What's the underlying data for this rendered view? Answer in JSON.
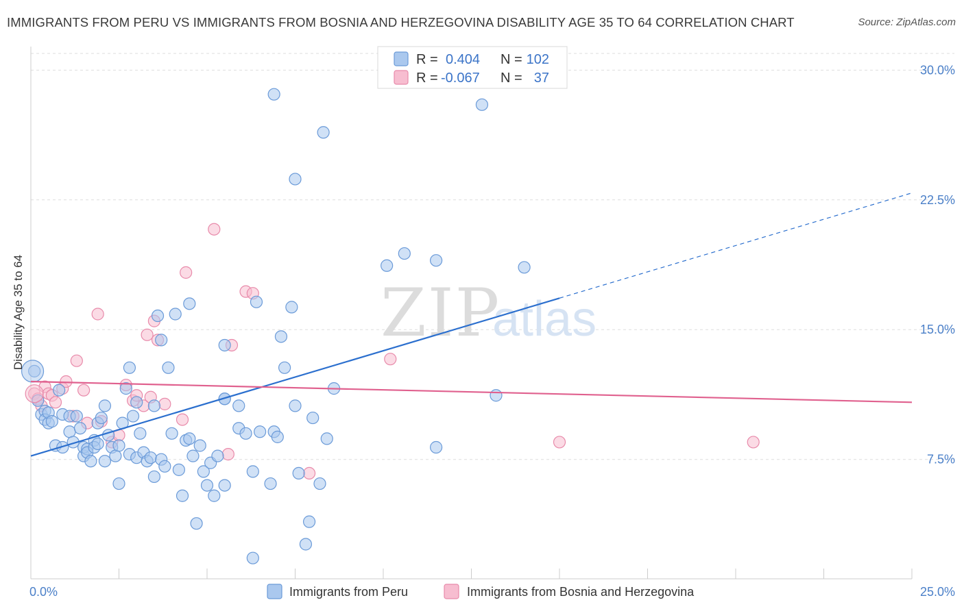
{
  "title": "IMMIGRANTS FROM PERU VS IMMIGRANTS FROM BOSNIA AND HERZEGOVINA DISABILITY AGE 35 TO 64 CORRELATION CHART",
  "source": "Source: ZipAtlas.com",
  "watermark": {
    "zip": "ZIP",
    "atlas": "atlas"
  },
  "colors": {
    "peru_fill": "#aac8ee",
    "peru_stroke": "#6a9ad8",
    "peru_line": "#2b6fce",
    "bosnia_fill": "#f7bdd0",
    "bosnia_stroke": "#e88aaa",
    "bosnia_line": "#e0608e",
    "tick_text": "#4a7fc8",
    "grid": "#dddddd"
  },
  "legend": {
    "rows": [
      {
        "r_label": "R =",
        "r_value": "0.404",
        "n_label": "N =",
        "n_value": "102"
      },
      {
        "r_label": "R =",
        "r_value": "-0.067",
        "n_label": "N =",
        "n_value": "37"
      }
    ]
  },
  "chart_data": {
    "type": "scatter",
    "xlabel": "",
    "ylabel": "Disability Age 35 to 64",
    "x_tick_labels": [
      "0.0%",
      "25.0%"
    ],
    "y_tick_labels": [
      "7.5%",
      "15.0%",
      "22.5%",
      "30.0%"
    ],
    "xlim": [
      0,
      25
    ],
    "ylim": [
      0.6,
      31.2
    ],
    "grid": true,
    "legend_placement": "top-center",
    "series": [
      {
        "name": "Immigrants from Peru",
        "points": [
          [
            0.1,
            12.6
          ],
          [
            0.2,
            10.9
          ],
          [
            0.3,
            10.1
          ],
          [
            0.4,
            10.3
          ],
          [
            0.4,
            9.8
          ],
          [
            0.5,
            9.6
          ],
          [
            0.5,
            10.2
          ],
          [
            0.6,
            9.7
          ],
          [
            0.7,
            8.3
          ],
          [
            0.8,
            11.5
          ],
          [
            0.9,
            10.1
          ],
          [
            0.9,
            8.2
          ],
          [
            1.1,
            10.0
          ],
          [
            1.1,
            9.1
          ],
          [
            1.2,
            8.5
          ],
          [
            1.3,
            10.0
          ],
          [
            1.4,
            9.3
          ],
          [
            1.5,
            7.7
          ],
          [
            1.5,
            8.2
          ],
          [
            1.6,
            8.1
          ],
          [
            1.6,
            7.9
          ],
          [
            1.7,
            7.4
          ],
          [
            1.8,
            8.6
          ],
          [
            1.8,
            8.2
          ],
          [
            1.9,
            9.6
          ],
          [
            1.9,
            8.4
          ],
          [
            2.0,
            9.9
          ],
          [
            2.1,
            10.6
          ],
          [
            2.1,
            7.4
          ],
          [
            2.2,
            8.9
          ],
          [
            2.3,
            8.2
          ],
          [
            2.4,
            7.7
          ],
          [
            2.5,
            8.3
          ],
          [
            2.5,
            6.1
          ],
          [
            2.6,
            9.6
          ],
          [
            2.7,
            11.6
          ],
          [
            2.8,
            7.8
          ],
          [
            2.8,
            12.8
          ],
          [
            2.9,
            10.0
          ],
          [
            3.0,
            10.8
          ],
          [
            3.0,
            7.6
          ],
          [
            3.1,
            9.0
          ],
          [
            3.2,
            7.9
          ],
          [
            3.3,
            7.4
          ],
          [
            3.4,
            7.6
          ],
          [
            3.5,
            10.6
          ],
          [
            3.5,
            6.5
          ],
          [
            3.6,
            15.8
          ],
          [
            3.7,
            14.4
          ],
          [
            3.7,
            7.5
          ],
          [
            3.8,
            7.1
          ],
          [
            3.9,
            12.8
          ],
          [
            4.0,
            9.0
          ],
          [
            4.1,
            15.9
          ],
          [
            4.2,
            6.9
          ],
          [
            4.3,
            5.4
          ],
          [
            4.4,
            8.6
          ],
          [
            4.5,
            16.5
          ],
          [
            4.5,
            8.7
          ],
          [
            4.6,
            7.7
          ],
          [
            4.7,
            3.8
          ],
          [
            4.8,
            8.3
          ],
          [
            4.9,
            6.8
          ],
          [
            5.0,
            6.0
          ],
          [
            5.1,
            7.3
          ],
          [
            5.2,
            5.4
          ],
          [
            5.3,
            7.7
          ],
          [
            5.5,
            11.0
          ],
          [
            5.5,
            14.1
          ],
          [
            5.5,
            6.0
          ],
          [
            5.9,
            10.6
          ],
          [
            5.9,
            9.3
          ],
          [
            5.5,
            11.0
          ],
          [
            6.1,
            9.0
          ],
          [
            6.3,
            6.8
          ],
          [
            6.4,
            16.6
          ],
          [
            6.3,
            1.8
          ],
          [
            6.5,
            9.1
          ],
          [
            6.8,
            6.1
          ],
          [
            6.9,
            28.6
          ],
          [
            6.9,
            9.1
          ],
          [
            7.0,
            8.8
          ],
          [
            7.1,
            14.6
          ],
          [
            7.2,
            12.8
          ],
          [
            7.4,
            16.3
          ],
          [
            7.5,
            23.7
          ],
          [
            7.5,
            10.6
          ],
          [
            7.6,
            6.7
          ],
          [
            7.8,
            2.6
          ],
          [
            7.9,
            3.9
          ],
          [
            8.0,
            9.9
          ],
          [
            8.2,
            6.1
          ],
          [
            8.3,
            26.4
          ],
          [
            8.4,
            8.7
          ],
          [
            8.6,
            11.6
          ],
          [
            10.1,
            18.7
          ],
          [
            10.6,
            19.4
          ],
          [
            11.5,
            19.0
          ],
          [
            11.5,
            8.2
          ],
          [
            12.8,
            28.0
          ],
          [
            13.2,
            11.2
          ],
          [
            14.0,
            18.6
          ]
        ],
        "trend": {
          "x": [
            0,
            25
          ],
          "y": [
            7.7,
            22.9
          ],
          "solid_until_x": 15.0
        }
      },
      {
        "name": "Immigrants from Bosnia and Herzegovina",
        "points": [
          [
            0.1,
            11.3
          ],
          [
            0.2,
            11.0
          ],
          [
            0.3,
            10.6
          ],
          [
            0.4,
            11.7
          ],
          [
            0.5,
            11.3
          ],
          [
            0.6,
            11.2
          ],
          [
            0.7,
            10.8
          ],
          [
            0.9,
            11.6
          ],
          [
            1.0,
            12.0
          ],
          [
            1.2,
            10.0
          ],
          [
            1.3,
            13.2
          ],
          [
            1.5,
            11.5
          ],
          [
            1.6,
            9.6
          ],
          [
            1.9,
            15.9
          ],
          [
            2.0,
            9.7
          ],
          [
            2.3,
            8.5
          ],
          [
            2.5,
            8.9
          ],
          [
            2.7,
            11.8
          ],
          [
            2.9,
            10.9
          ],
          [
            3.0,
            11.2
          ],
          [
            3.2,
            10.6
          ],
          [
            3.3,
            14.7
          ],
          [
            3.4,
            11.1
          ],
          [
            3.5,
            15.5
          ],
          [
            3.6,
            14.4
          ],
          [
            3.8,
            10.7
          ],
          [
            4.3,
            9.8
          ],
          [
            4.4,
            18.3
          ],
          [
            5.2,
            20.8
          ],
          [
            5.6,
            7.8
          ],
          [
            5.7,
            14.1
          ],
          [
            6.1,
            17.2
          ],
          [
            6.3,
            17.1
          ],
          [
            7.9,
            6.7
          ],
          [
            10.2,
            13.3
          ],
          [
            15.0,
            8.5
          ],
          [
            20.5,
            8.5
          ]
        ],
        "trend": {
          "x": [
            0,
            25
          ],
          "y": [
            12.0,
            10.8
          ]
        }
      }
    ]
  }
}
